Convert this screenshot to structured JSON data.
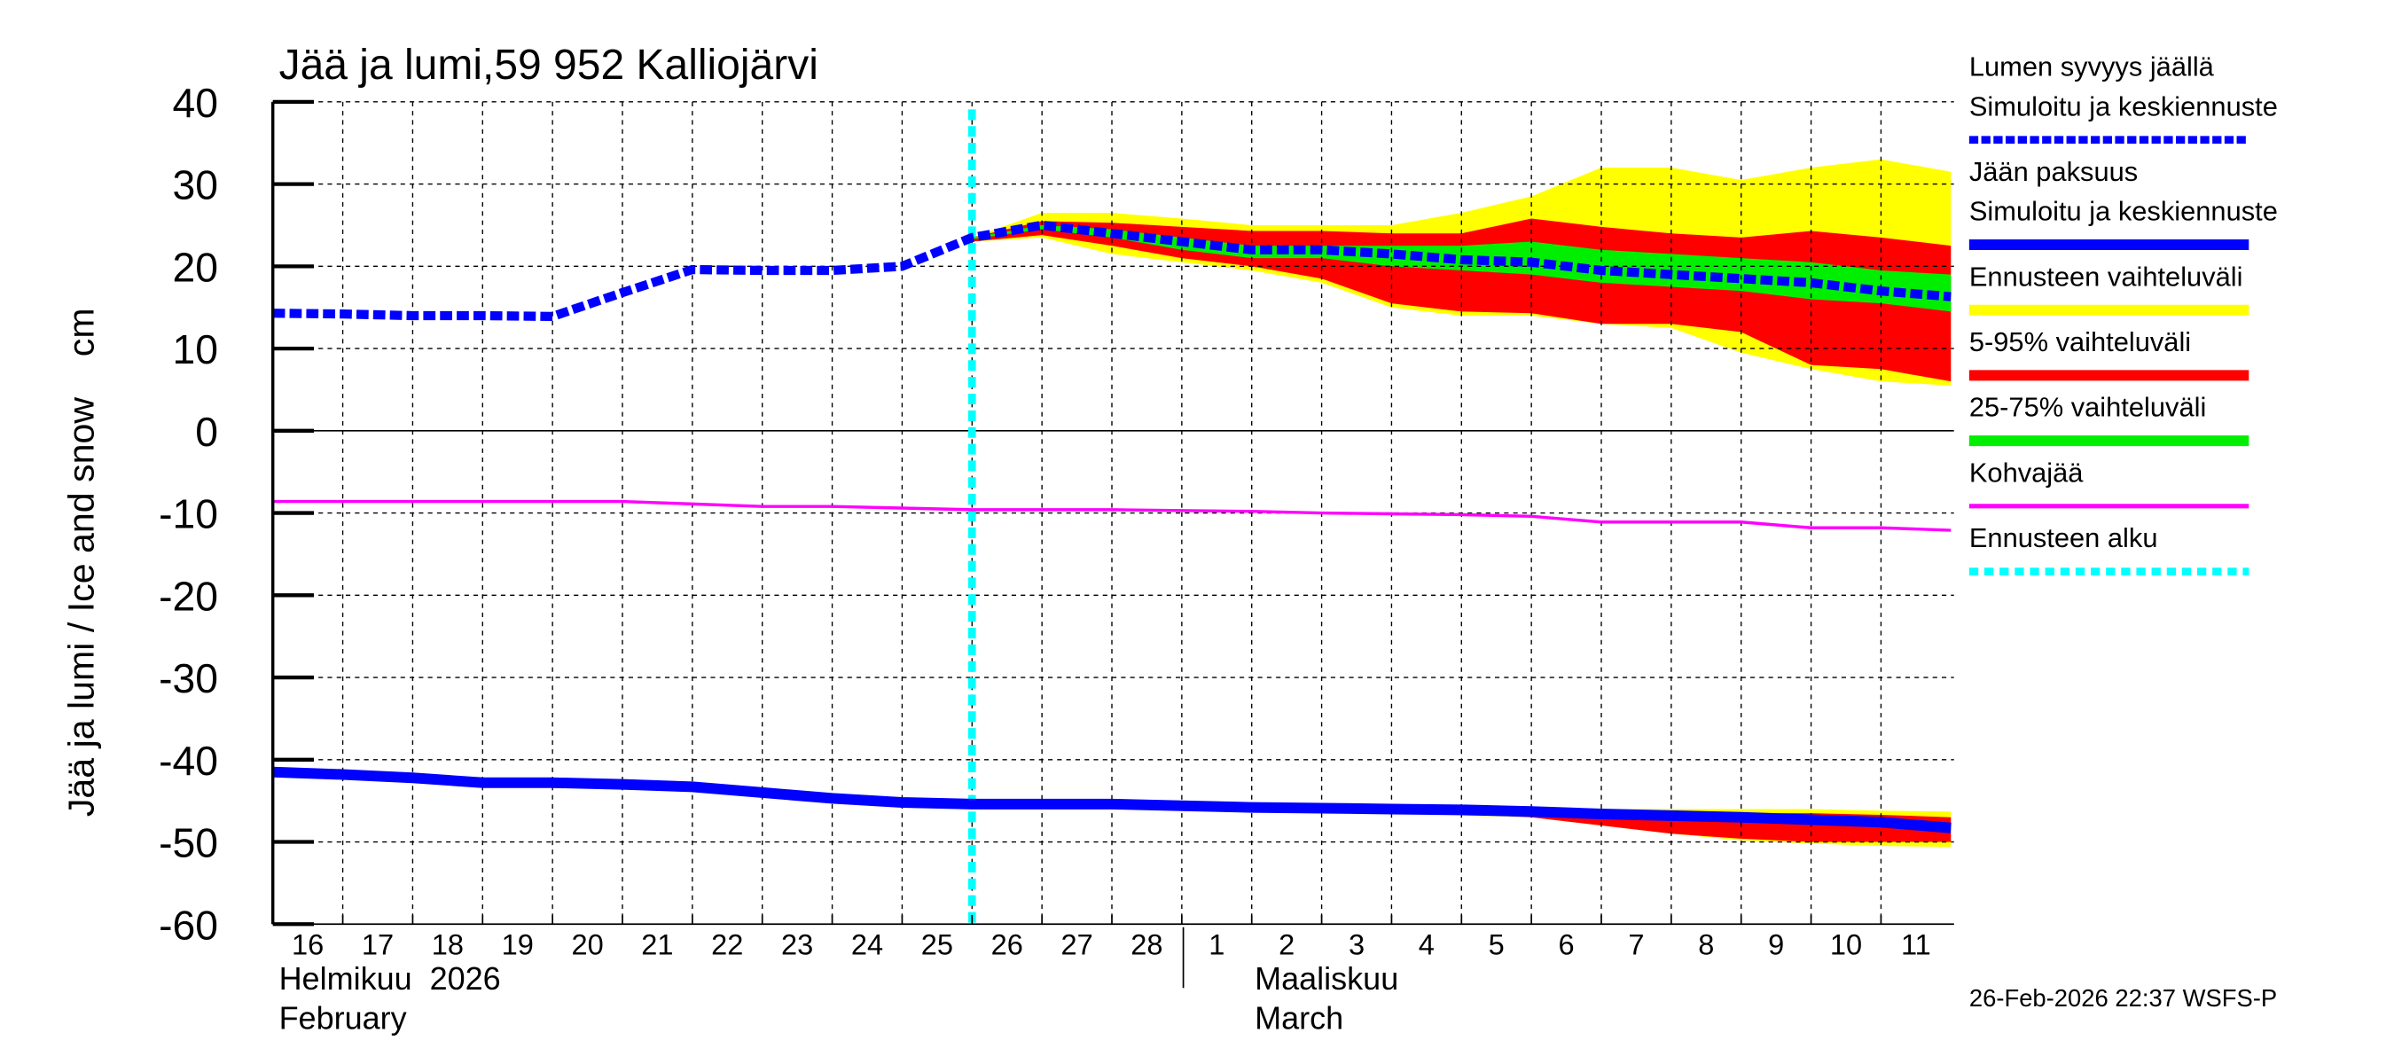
{
  "chart_data": {
    "type": "line",
    "title": "Jää ja lumi,59 952 Kalliojärvi",
    "ylabel": "Jää ja lumi / Ice and snow    cm",
    "ylim": [
      -60,
      40
    ],
    "yticks": [
      40,
      30,
      20,
      10,
      0,
      -10,
      -20,
      -30,
      -40,
      -50,
      -60
    ],
    "grid": true,
    "legend_position": "right",
    "x_day_labels": [
      "16",
      "17",
      "18",
      "19",
      "20",
      "21",
      "22",
      "23",
      "24",
      "25",
      "26",
      "27",
      "28",
      "1",
      "2",
      "3",
      "4",
      "5",
      "6",
      "7",
      "8",
      "9",
      "10",
      "11"
    ],
    "month_labels": [
      {
        "fi": "Helmikuu  2026",
        "en": "February"
      },
      {
        "fi": "Maaliskuu",
        "en": "March"
      }
    ],
    "forecast_start": "26",
    "x_dates": [
      "2026-02-16",
      "2026-02-17",
      "2026-02-18",
      "2026-02-19",
      "2026-02-20",
      "2026-02-21",
      "2026-02-22",
      "2026-02-23",
      "2026-02-24",
      "2026-02-25",
      "2026-02-26",
      "2026-02-27",
      "2026-02-28",
      "2026-03-01",
      "2026-03-02",
      "2026-03-03",
      "2026-03-04",
      "2026-03-05",
      "2026-03-06",
      "2026-03-07",
      "2026-03-08",
      "2026-03-09",
      "2026-03-10",
      "2026-03-11",
      "2026-03-12"
    ],
    "series": [
      {
        "name": "Lumen syvyys jäällä – Simuloitu ja keskiennuste",
        "style": "dashed",
        "color": "#0000ff",
        "values": [
          14.3,
          14.2,
          14.0,
          14.0,
          13.9,
          16.8,
          19.6,
          19.5,
          19.5,
          20.0,
          23.5,
          25.0,
          24.0,
          23.0,
          22.0,
          22.0,
          21.5,
          20.8,
          20.5,
          19.5,
          19.0,
          18.5,
          18.0,
          17.0,
          16.3
        ]
      },
      {
        "name": "Jään paksuus – Simuloitu ja keskiennuste",
        "style": "solid",
        "color": "#0000ff",
        "values": [
          -41.5,
          -41.8,
          -42.2,
          -42.8,
          -42.8,
          -43.0,
          -43.3,
          -44.0,
          -44.7,
          -45.2,
          -45.4,
          -45.4,
          -45.4,
          -45.6,
          -45.8,
          -45.9,
          -46.0,
          -46.1,
          -46.3,
          -46.6,
          -46.8,
          -47.0,
          -47.3,
          -47.6,
          -48.3
        ]
      },
      {
        "name": "Kohvajää",
        "style": "solid",
        "color": "#ff00ff",
        "values": [
          -8.6,
          -8.6,
          -8.6,
          -8.6,
          -8.6,
          -8.6,
          -8.9,
          -9.2,
          -9.2,
          -9.4,
          -9.6,
          -9.6,
          -9.6,
          -9.7,
          -9.8,
          -10.0,
          -10.1,
          -10.2,
          -10.4,
          -11.1,
          -11.1,
          -11.1,
          -11.8,
          -11.8,
          -12.1
        ]
      }
    ],
    "bands": {
      "start_index": 10,
      "snow": {
        "yellow_max": [
          23.5,
          26.5,
          26.5,
          25.8,
          25.0,
          25.0,
          25.0,
          26.5,
          28.5,
          32.0,
          32.0,
          30.5,
          32.0,
          33.0,
          31.5
        ],
        "yellow_min": [
          23.0,
          23.5,
          21.5,
          20.5,
          19.5,
          18.0,
          15.0,
          14.0,
          14.0,
          13.0,
          12.5,
          9.5,
          7.5,
          6.0,
          5.5
        ],
        "red_max": [
          23.5,
          25.5,
          25.3,
          24.8,
          24.3,
          24.3,
          24.0,
          24.0,
          25.8,
          24.8,
          24.0,
          23.5,
          24.3,
          23.5,
          22.5
        ],
        "red_min": [
          23.0,
          23.8,
          22.5,
          21.0,
          20.0,
          18.5,
          15.5,
          14.5,
          14.3,
          13.0,
          13.0,
          12.0,
          8.0,
          7.5,
          6.0
        ],
        "green_max": [
          23.5,
          25.0,
          24.5,
          23.5,
          22.5,
          22.5,
          22.5,
          22.5,
          23.0,
          22.0,
          21.5,
          21.0,
          20.5,
          19.5,
          19.0
        ],
        "green_min": [
          23.3,
          24.5,
          23.5,
          22.0,
          21.0,
          21.0,
          20.0,
          19.5,
          19.0,
          18.0,
          17.5,
          17.0,
          16.0,
          15.5,
          14.5
        ]
      },
      "ice": {
        "yellow_max": [
          -45.4,
          -45.4,
          -45.4,
          -45.5,
          -45.6,
          -45.8,
          -45.9,
          -46.0,
          -46.0,
          -46.0,
          -46.0,
          -46.0,
          -46.0,
          -46.2,
          -46.3
        ],
        "yellow_min": [
          -45.4,
          -45.4,
          -45.5,
          -45.7,
          -46.0,
          -46.4,
          -46.6,
          -46.8,
          -47.0,
          -48.0,
          -49.0,
          -49.8,
          -50.2,
          -50.5,
          -50.6
        ],
        "red_max": [
          -45.4,
          -45.4,
          -45.4,
          -45.6,
          -45.8,
          -45.9,
          -46.0,
          -46.1,
          -46.2,
          -46.3,
          -46.5,
          -46.5,
          -46.5,
          -46.7,
          -47.0
        ],
        "red_min": [
          -45.4,
          -45.4,
          -45.5,
          -45.7,
          -45.9,
          -46.2,
          -46.4,
          -46.6,
          -47.0,
          -48.0,
          -49.0,
          -49.6,
          -50.0,
          -50.0,
          -50.0
        ],
        "green_max": [
          -45.4,
          -45.4,
          -45.3,
          -45.4,
          -45.6,
          -45.7,
          -45.8,
          -45.9,
          -46.0,
          -46.2,
          -46.4,
          -46.6,
          -46.9,
          -47.2,
          -47.8
        ],
        "green_min": [
          -45.4,
          -45.4,
          -45.5,
          -45.8,
          -46.0,
          -46.1,
          -46.2,
          -46.3,
          -46.6,
          -47.0,
          -47.2,
          -47.4,
          -47.7,
          -48.0,
          -48.8
        ]
      }
    },
    "colors": {
      "yellow": "#ffff00",
      "red": "#ff0000",
      "green": "#00ee00",
      "blue": "#0000ff",
      "magenta": "#ff00ff",
      "cyan": "#00ffff"
    }
  },
  "legend": [
    {
      "label1": "Lumen syvyys jäällä",
      "label2": "Simuloitu ja keskiennuste",
      "color": "#0000ff",
      "style": "dashed"
    },
    {
      "label1": "Jään paksuus",
      "label2": "Simuloitu ja keskiennuste",
      "color": "#0000ff",
      "style": "solid"
    },
    {
      "label1": "Ennusteen vaihteluväli",
      "color": "#ffff00",
      "style": "solid"
    },
    {
      "label1": "5-95% vaihteluväli",
      "color": "#ff0000",
      "style": "solid"
    },
    {
      "label1": "25-75% vaihteluväli",
      "color": "#00ee00",
      "style": "solid"
    },
    {
      "label1": "Kohvajää",
      "color": "#ff00ff",
      "style": "thin"
    },
    {
      "label1": "Ennusteen alku",
      "color": "#00ffff",
      "style": "dotted"
    }
  ],
  "footer": {
    "timestamp": "26-Feb-2026 22:37 WSFS-P"
  }
}
